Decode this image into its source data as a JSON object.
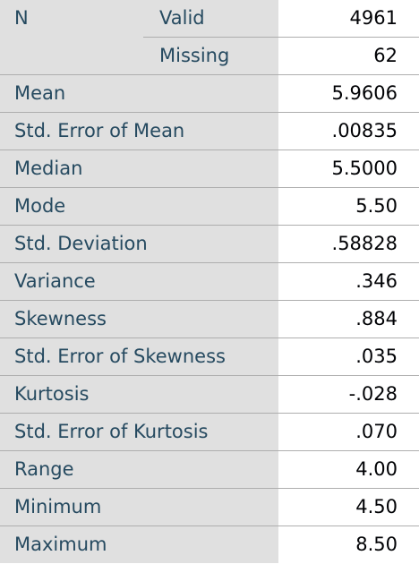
{
  "table": {
    "n_label": "N",
    "n_rows": [
      {
        "label": "Valid",
        "value": "4961"
      },
      {
        "label": "Missing",
        "value": "62"
      }
    ],
    "rows": [
      {
        "label": "Mean",
        "value": "5.9606"
      },
      {
        "label": "Std. Error of Mean",
        "value": ".00835"
      },
      {
        "label": "Median",
        "value": "5.5000"
      },
      {
        "label": "Mode",
        "value": "5.50"
      },
      {
        "label": "Std. Deviation",
        "value": ".58828"
      },
      {
        "label": "Variance",
        "value": ".346"
      },
      {
        "label": "Skewness",
        "value": ".884"
      },
      {
        "label": "Std. Error of Skewness",
        "value": ".035"
      },
      {
        "label": "Kurtosis",
        "value": "-.028"
      },
      {
        "label": "Std. Error of Kurtosis",
        "value": ".070"
      },
      {
        "label": "Range",
        "value": "4.00"
      },
      {
        "label": "Minimum",
        "value": "4.50"
      },
      {
        "label": "Maximum",
        "value": "8.50"
      }
    ]
  },
  "colors": {
    "label_bg": "#e0e0e0",
    "label_text": "#264a60",
    "value_text": "#010205",
    "rule": "#aeaeae"
  }
}
